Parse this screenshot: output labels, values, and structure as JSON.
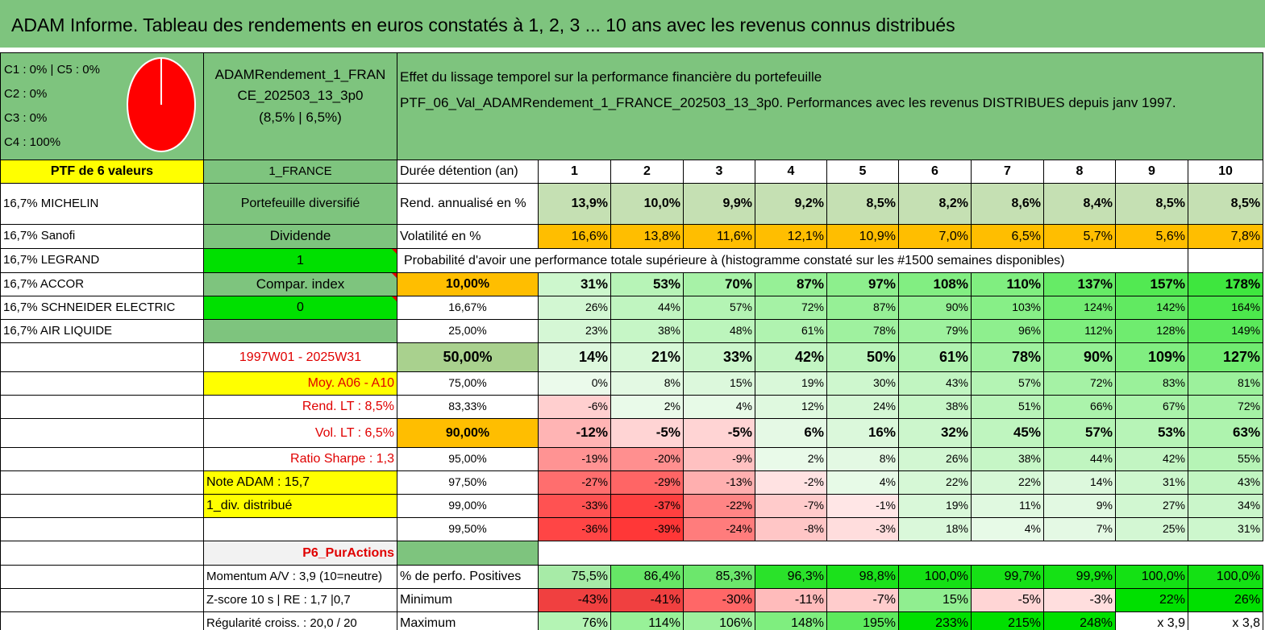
{
  "title": "ADAM Informe. Tableau des rendements en euros constatés à 1, 2, 3 ... 10 ans avec les revenus connus distribués",
  "legend": [
    "C1 : 0% | C5 : 0%",
    "C2 : 0%",
    "C3 : 0%",
    "C4 : 100%"
  ],
  "pie": {
    "fill_color": "#ff0000",
    "segments": [
      {
        "label": "C4",
        "value": 100
      }
    ]
  },
  "portfolio": {
    "name_line1": "ADAMRendement_1_FRAN",
    "name_line2": "CE_202503_13_3p0",
    "name_line3": "(8,5% | 6,5%)"
  },
  "header": {
    "line1": "Effet du lissage temporel sur la performance financière du portefeuille",
    "line2": "PTF_06_Val_ADAMRendement_1_FRANCE_202503_13_3p0. Performances avec les revenus DISTRIBUES depuis janv 1997."
  },
  "ptf_count": "PTF de 6 valeurs",
  "market": "1_FRANCE",
  "duration_label": "Durée détention (an)",
  "years": [
    "1",
    "2",
    "3",
    "4",
    "5",
    "6",
    "7",
    "8",
    "9",
    "10"
  ],
  "holdings": [
    "16,7% MICHELIN",
    "16,7% Sanofi",
    "16,7% LEGRAND",
    "16,7% ACCOR",
    "16,7% SCHNEIDER ELECTRIC",
    "16,7% AIR LIQUIDE"
  ],
  "side_labels": {
    "diversified": "Portefeuille diversifié",
    "dividend": "Dividende",
    "dividend_value": "1",
    "compar_index": "Compar. index",
    "compar_value": "0",
    "period": "1997W01 - 2025W31",
    "moy": "Moy. A06 - A10",
    "rend_lt": "Rend. LT : 8,5%",
    "vol_lt": "Vol. LT : 6,5%",
    "sharpe": "Ratio Sharpe : 1,3",
    "note": "Note ADAM : 15,7",
    "div_distrib": "1_div. distribué",
    "p6": "P6_PurActions",
    "momentum": "Momentum A/V : 3,9 (10=neutre)",
    "zscore": "Z-score 10 s | RE : 1,7 |0,7",
    "regularite": "Régularité croiss. : 20,0 / 20"
  },
  "rend": {
    "label": "Rend. annualisé en %",
    "values": [
      "13,9%",
      "10,0%",
      "9,9%",
      "9,2%",
      "8,5%",
      "8,2%",
      "8,6%",
      "8,4%",
      "8,5%",
      "8,5%"
    ]
  },
  "vol": {
    "label": "Volatilité en %",
    "values": [
      "16,6%",
      "13,8%",
      "11,6%",
      "12,1%",
      "10,9%",
      "7,0%",
      "6,5%",
      "5,7%",
      "5,6%",
      "7,8%"
    ]
  },
  "prob_title": "Probabilité d'avoir une performance totale supérieure à (histogramme constaté sur les #1500 semaines disponibles)",
  "prob_rows": [
    {
      "p": "10,00%",
      "v": [
        "31%",
        "53%",
        "70%",
        "87%",
        "97%",
        "108%",
        "110%",
        "137%",
        "157%",
        "178%"
      ]
    },
    {
      "p": "16,67%",
      "v": [
        "26%",
        "44%",
        "57%",
        "72%",
        "87%",
        "90%",
        "103%",
        "124%",
        "142%",
        "164%"
      ]
    },
    {
      "p": "25,00%",
      "v": [
        "23%",
        "38%",
        "48%",
        "61%",
        "78%",
        "79%",
        "96%",
        "112%",
        "128%",
        "149%"
      ]
    },
    {
      "p": "50,00%",
      "v": [
        "14%",
        "21%",
        "33%",
        "42%",
        "50%",
        "61%",
        "78%",
        "90%",
        "109%",
        "127%"
      ]
    },
    {
      "p": "75,00%",
      "v": [
        "0%",
        "8%",
        "15%",
        "19%",
        "30%",
        "43%",
        "57%",
        "72%",
        "83%",
        "81%"
      ]
    },
    {
      "p": "83,33%",
      "v": [
        "-6%",
        "2%",
        "4%",
        "12%",
        "24%",
        "38%",
        "51%",
        "66%",
        "67%",
        "72%"
      ]
    },
    {
      "p": "90,00%",
      "v": [
        "-12%",
        "-5%",
        "-5%",
        "6%",
        "16%",
        "32%",
        "45%",
        "57%",
        "53%",
        "63%"
      ]
    },
    {
      "p": "95,00%",
      "v": [
        "-19%",
        "-20%",
        "-9%",
        "2%",
        "8%",
        "26%",
        "38%",
        "44%",
        "42%",
        "55%"
      ]
    },
    {
      "p": "97,50%",
      "v": [
        "-27%",
        "-29%",
        "-13%",
        "-2%",
        "4%",
        "22%",
        "22%",
        "14%",
        "31%",
        "43%"
      ]
    },
    {
      "p": "99,00%",
      "v": [
        "-33%",
        "-37%",
        "-22%",
        "-7%",
        "-1%",
        "19%",
        "11%",
        "9%",
        "27%",
        "34%"
      ]
    },
    {
      "p": "99,50%",
      "v": [
        "-36%",
        "-39%",
        "-24%",
        "-8%",
        "-3%",
        "18%",
        "4%",
        "7%",
        "25%",
        "31%"
      ]
    }
  ],
  "positives": {
    "label": "% de perfo. Positives",
    "values": [
      "75,5%",
      "86,4%",
      "85,3%",
      "96,3%",
      "98,8%",
      "100,0%",
      "99,7%",
      "99,9%",
      "100,0%",
      "100,0%"
    ]
  },
  "minimum": {
    "label": "Minimum",
    "values": [
      "-43%",
      "-41%",
      "-30%",
      "-11%",
      "-7%",
      "15%",
      "-5%",
      "-3%",
      "22%",
      "26%"
    ]
  },
  "maximum": {
    "label": "Maximum",
    "values": [
      "76%",
      "114%",
      "106%",
      "148%",
      "195%",
      "233%",
      "215%",
      "248%",
      "x 3,9",
      "x 3,8"
    ]
  },
  "colors": {
    "header_green": "#7ec47e",
    "yellow": "#ffff00",
    "bright_green": "#00e000",
    "orange": "#ffbe00",
    "soft_green": "#c5e0b3",
    "red_text": "#e00000"
  }
}
